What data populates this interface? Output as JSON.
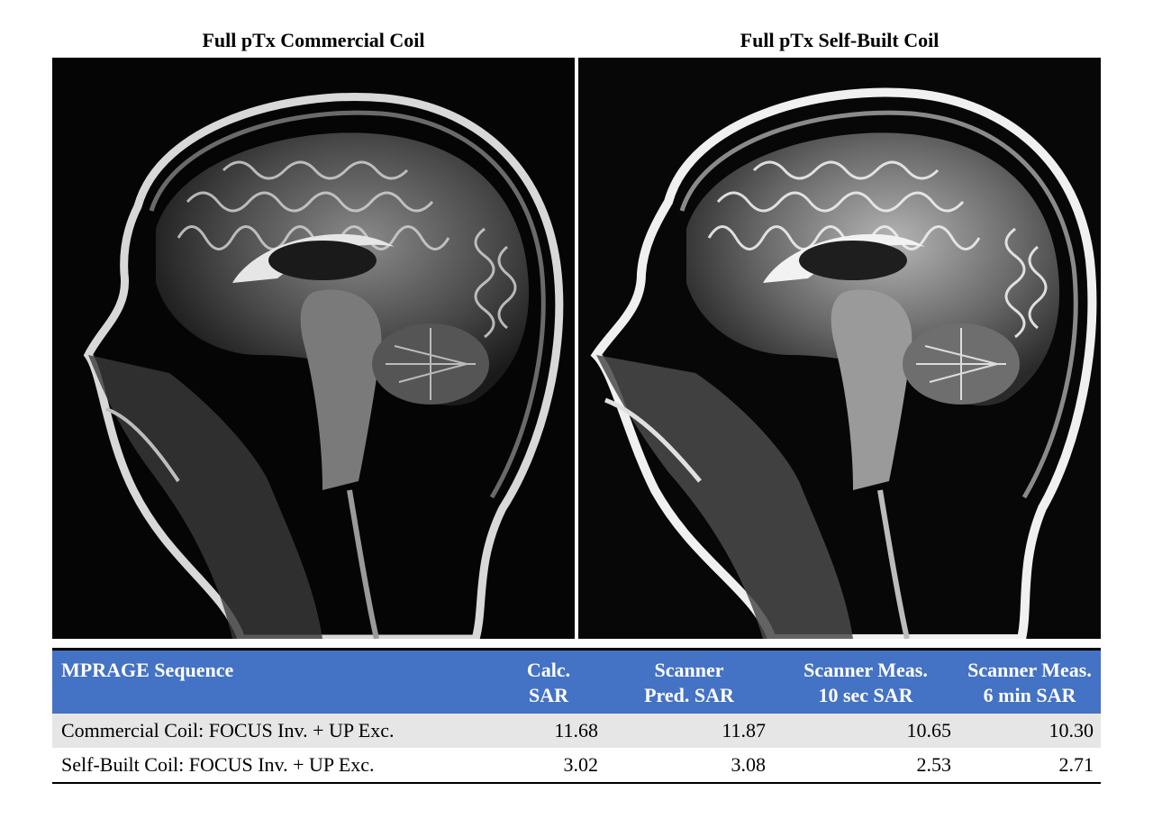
{
  "panels": {
    "left_title": "Full pTx Commercial Coil",
    "right_title": "Full pTx Self-Built Coil"
  },
  "table": {
    "headers": [
      [
        "MPRAGE Sequence",
        ""
      ],
      [
        "Calc.",
        "SAR"
      ],
      [
        "Scanner",
        "Pred. SAR"
      ],
      [
        "Scanner Meas.",
        "10 sec SAR"
      ],
      [
        "Scanner Meas.",
        "6 min SAR"
      ]
    ],
    "rows": [
      [
        "Commercial Coil: FOCUS Inv. + UP Exc.",
        "11.68",
        "11.87",
        "10.65",
        "10.30"
      ],
      [
        "Self-Built Coil: FOCUS Inv. + UP Exc.",
        "3.02",
        "3.08",
        "2.53",
        "2.71"
      ]
    ],
    "header_color": "#4472c4",
    "shaded_row_color": "#e7e6e6"
  }
}
